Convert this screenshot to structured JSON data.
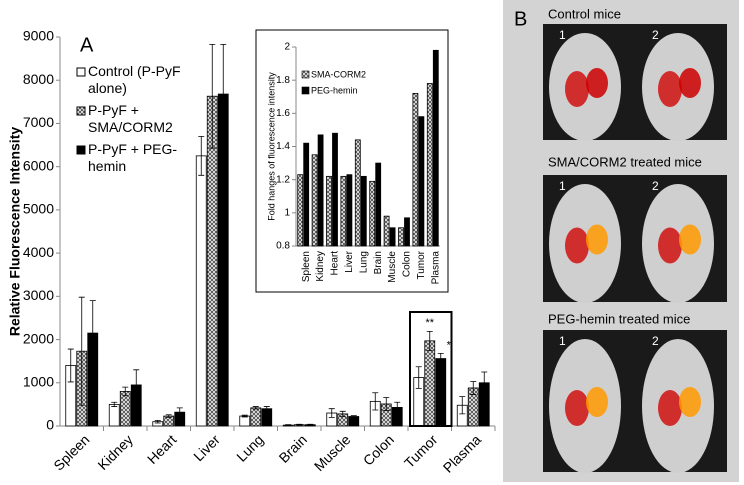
{
  "chart_data": [
    {
      "type": "bar",
      "panel_label": "A",
      "y_label": "Relative Fluorescence Intensity",
      "categories": [
        "Spleen",
        "Kidney",
        "Heart",
        "Liver",
        "Lung",
        "Brain",
        "Muscle",
        "Colon",
        "Tumor",
        "Plasma"
      ],
      "series": [
        {
          "name": "Control (P-PyF alone)",
          "color": "#ffffff",
          "hatch": false,
          "values": [
            1400,
            500,
            100,
            6250,
            230,
            20,
            300,
            570,
            1120,
            480
          ],
          "errors": [
            380,
            50,
            30,
            450,
            20,
            10,
            100,
            200,
            250,
            200
          ]
        },
        {
          "name": "P-PyF + SMA/CORM2",
          "color": "#9a9a9a",
          "hatch": true,
          "values": [
            1730,
            800,
            230,
            7630,
            420,
            30,
            280,
            510,
            1970,
            880
          ],
          "errors": [
            1250,
            100,
            30,
            1200,
            30,
            10,
            60,
            150,
            220,
            150
          ]
        },
        {
          "name": "P-PyF + PEG-hemin",
          "color": "#000000",
          "hatch": false,
          "values": [
            2150,
            950,
            320,
            7680,
            400,
            30,
            220,
            430,
            1560,
            1000
          ],
          "errors": [
            750,
            350,
            100,
            1150,
            50,
            10,
            20,
            120,
            120,
            250
          ]
        }
      ],
      "ylim": [
        0,
        9000
      ],
      "yticks": [
        0,
        1000,
        2000,
        3000,
        4000,
        5000,
        6000,
        7000,
        8000,
        9000
      ],
      "annotations": [
        {
          "text": "**",
          "category": 8,
          "series": 1
        },
        {
          "text": "*",
          "category": 8,
          "series": 2
        }
      ],
      "highlight_category": 8
    },
    {
      "type": "bar",
      "y_label": "Fold hanges of fluorescence intensity",
      "categories": [
        "Spleen",
        "Kidney",
        "Heart",
        "Liver",
        "Lung",
        "Brain",
        "Muscle",
        "Colon",
        "Tumor",
        "Plasma"
      ],
      "series": [
        {
          "name": "SMA-CORM2",
          "color": "#9a9a9a",
          "hatch": true,
          "values": [
            1.23,
            1.35,
            1.22,
            1.22,
            1.44,
            1.19,
            0.98,
            0.91,
            1.72,
            1.78
          ]
        },
        {
          "name": "PEG-hemin",
          "color": "#000000",
          "hatch": false,
          "values": [
            1.42,
            1.47,
            1.48,
            1.23,
            1.22,
            1.3,
            0.91,
            0.97,
            1.58,
            1.98
          ]
        }
      ],
      "ylim": [
        0.8,
        2
      ],
      "yticks": [
        0.8,
        1,
        1.2,
        1.4,
        1.6,
        1.8,
        2
      ]
    }
  ],
  "panel_b": {
    "label": "B",
    "images": [
      {
        "caption": "Control mice",
        "mice": [
          "1",
          "2"
        ]
      },
      {
        "caption": "SMA/CORM2 treated mice",
        "mice": [
          "1",
          "2"
        ]
      },
      {
        "caption": "PEG-hemin treated mice",
        "mice": [
          "1",
          "2"
        ]
      }
    ]
  }
}
